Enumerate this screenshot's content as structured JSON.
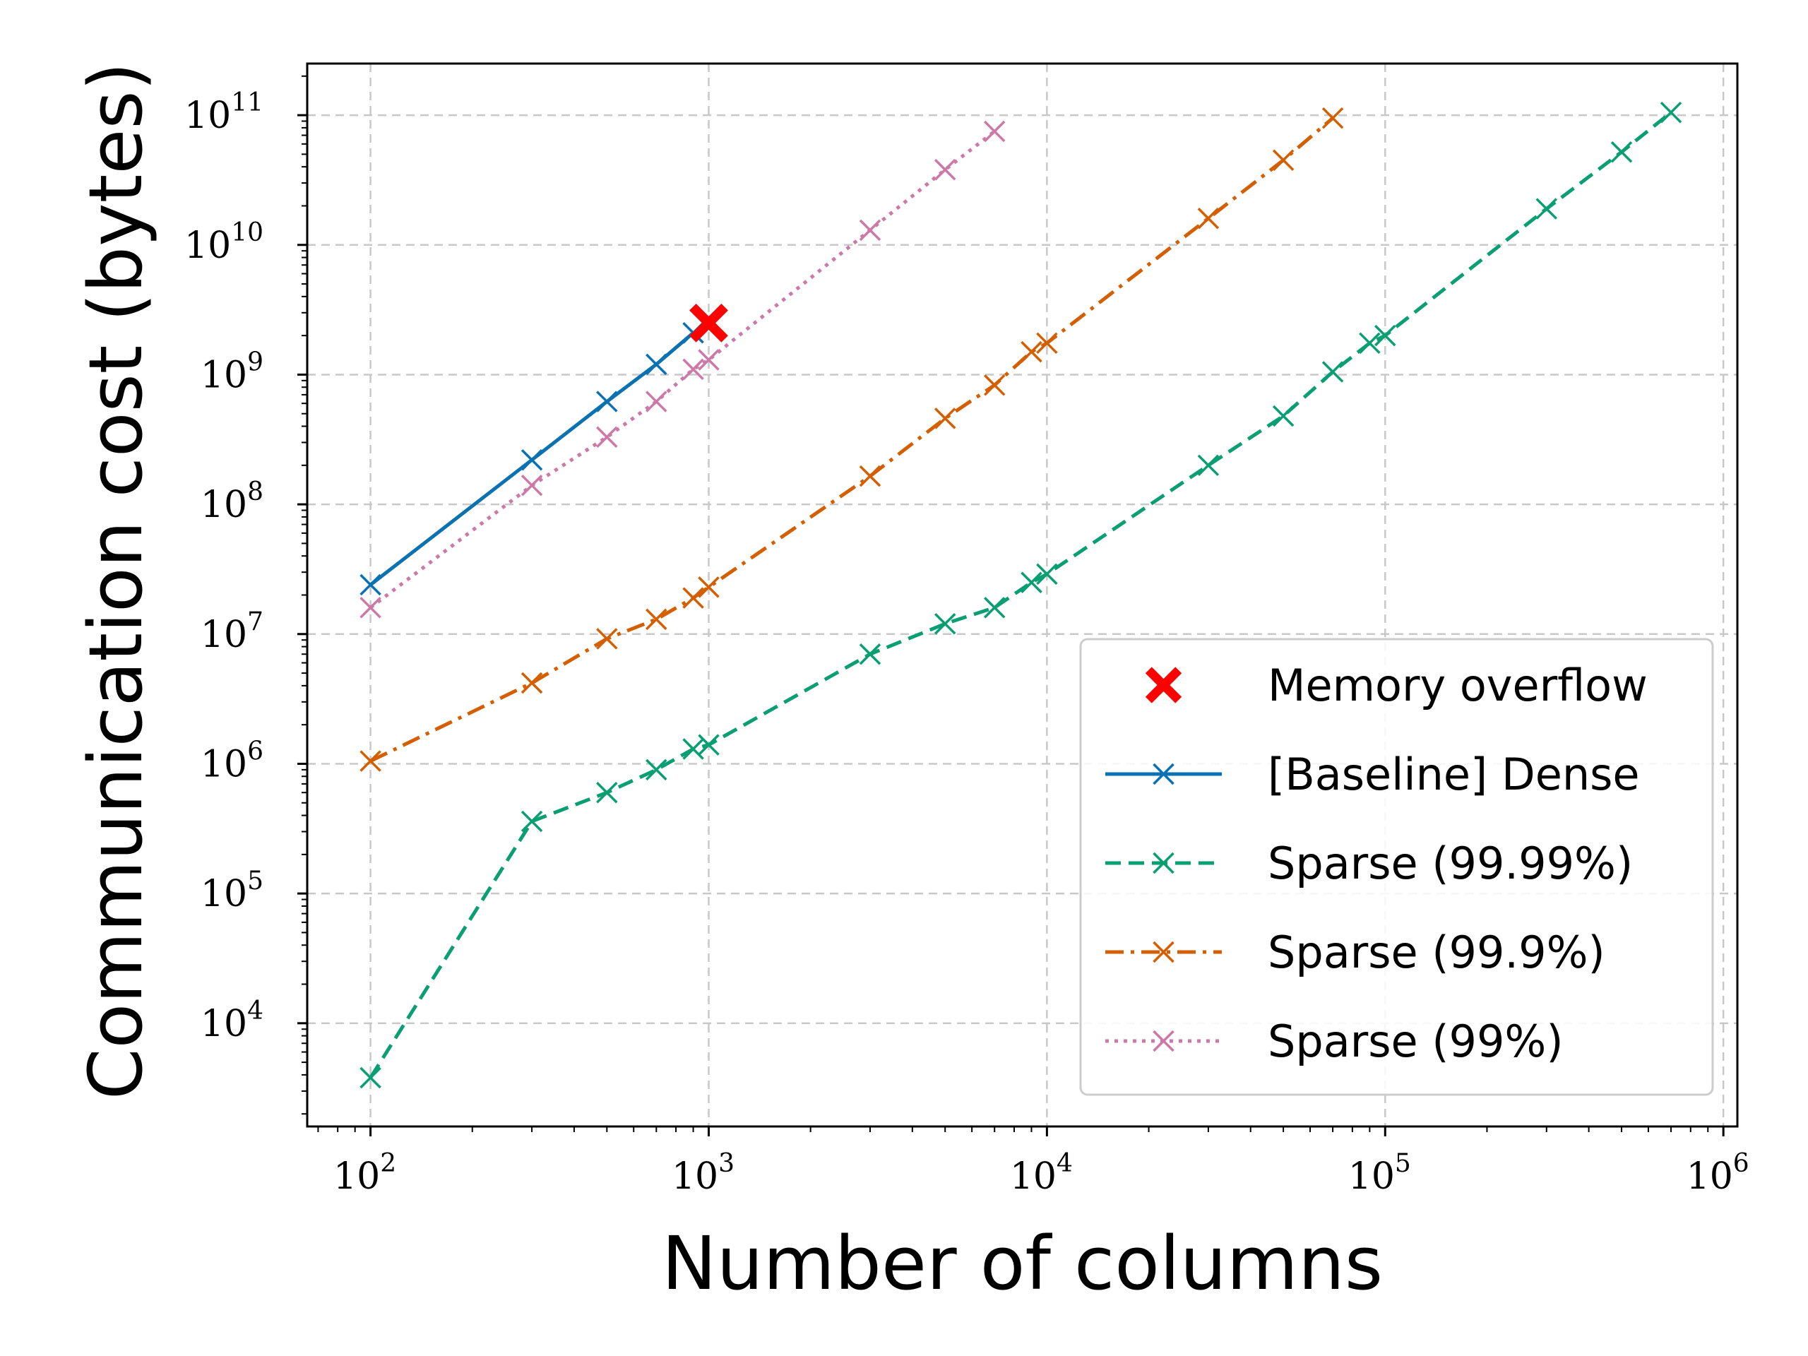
{
  "chart_data": {
    "type": "line",
    "title": "",
    "xlabel": "Number of columns",
    "ylabel": "Communication cost (bytes)",
    "xscale": "log",
    "yscale": "log",
    "xlim": [
      65,
      1100000
    ],
    "ylim": [
      1600,
      250000000000
    ],
    "x_ticks": [
      {
        "base": "10",
        "exp": "2",
        "value": 100
      },
      {
        "base": "10",
        "exp": "3",
        "value": 1000
      },
      {
        "base": "10",
        "exp": "4",
        "value": 10000
      },
      {
        "base": "10",
        "exp": "5",
        "value": 100000
      },
      {
        "base": "10",
        "exp": "6",
        "value": 1000000
      }
    ],
    "y_ticks": [
      {
        "base": "10",
        "exp": "4",
        "value": 10000
      },
      {
        "base": "10",
        "exp": "5",
        "value": 100000
      },
      {
        "base": "10",
        "exp": "6",
        "value": 1000000
      },
      {
        "base": "10",
        "exp": "7",
        "value": 10000000
      },
      {
        "base": "10",
        "exp": "8",
        "value": 100000000
      },
      {
        "base": "10",
        "exp": "9",
        "value": 1000000000
      },
      {
        "base": "10",
        "exp": "10",
        "value": 10000000000
      },
      {
        "base": "10",
        "exp": "11",
        "value": 100000000000
      }
    ],
    "grid": true,
    "legend_position": "lower-right",
    "series": [
      {
        "name": "[Baseline] Dense",
        "color": "#0a72b2",
        "dash": "solid",
        "marker": "x",
        "x": [
          100,
          300,
          500,
          700,
          900
        ],
        "y": [
          24000000,
          220000000,
          620000000,
          1200000000,
          2100000000
        ]
      },
      {
        "name": "Sparse (99.99%)",
        "color": "#0a9e73",
        "dash": "dashed",
        "marker": "x",
        "x": [
          100,
          300,
          500,
          700,
          900,
          1000,
          3000,
          5000,
          7000,
          9000,
          10000,
          30000,
          50000,
          70000,
          90000,
          100000,
          300000,
          500000,
          700000
        ],
        "y": [
          3800,
          360000,
          600000,
          900000,
          1300000,
          1400000,
          7000000,
          12000000,
          16000000,
          25000000,
          29000000,
          200000000,
          480000000,
          1050000000,
          1750000000,
          2000000000,
          19000000000,
          52000000000,
          105000000000
        ]
      },
      {
        "name": "Sparse (99.9%)",
        "color": "#d55e00",
        "dash": "dashdot",
        "marker": "x",
        "x": [
          100,
          300,
          500,
          700,
          900,
          1000,
          3000,
          5000,
          7000,
          9000,
          10000,
          30000,
          50000,
          70000
        ],
        "y": [
          1050000,
          4200000,
          9200000,
          13000000,
          19000000,
          23000000,
          165000000,
          460000000,
          830000000,
          1500000000,
          1750000000,
          16000000000,
          45000000000,
          95000000000
        ]
      },
      {
        "name": "Sparse (99%)",
        "color": "#cc79a7",
        "dash": "dotted",
        "marker": "x",
        "x": [
          100,
          300,
          500,
          700,
          900,
          1000,
          3000,
          5000,
          7000
        ],
        "y": [
          16000000,
          140000000,
          330000000,
          620000000,
          1100000000,
          1300000000,
          13000000000,
          38000000000,
          75000000000
        ]
      }
    ],
    "annotations": [
      {
        "name": "Memory overflow",
        "marker": "X",
        "color": "#ff0000",
        "x": 1000,
        "y": 2500000000
      }
    ]
  }
}
